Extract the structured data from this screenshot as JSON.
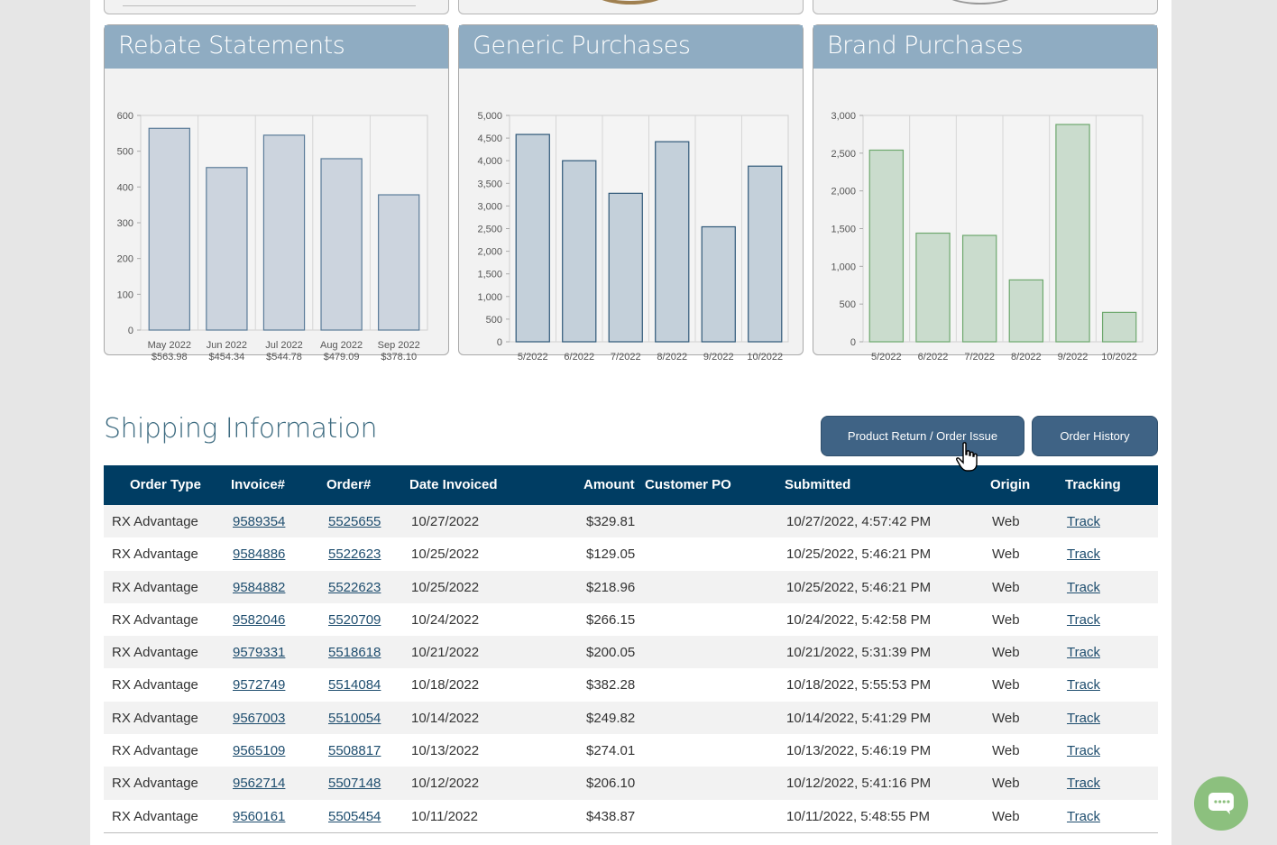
{
  "charts": {
    "rebate": {
      "title": "Rebate Statements",
      "y_ticks": [
        "600",
        "500",
        "400",
        "300",
        "200",
        "100",
        "0"
      ],
      "bars": [
        {
          "label1": "May 2022",
          "label2": "$563.98"
        },
        {
          "label1": "Jun 2022",
          "label2": "$454.34"
        },
        {
          "label1": "Jul 2022",
          "label2": "$544.78"
        },
        {
          "label1": "Aug 2022",
          "label2": "$479.09"
        },
        {
          "label1": "Sep 2022",
          "label2": "$378.10"
        }
      ]
    },
    "generic": {
      "title": "Generic Purchases",
      "y_ticks": [
        "5,000",
        "4,500",
        "4,000",
        "3,500",
        "3,000",
        "2,500",
        "2,000",
        "1,500",
        "1,000",
        "500",
        "0"
      ],
      "x_labels": [
        "5/2022",
        "6/2022",
        "7/2022",
        "8/2022",
        "9/2022",
        "10/2022"
      ]
    },
    "brand": {
      "title": "Brand Purchases",
      "y_ticks": [
        "3,000",
        "2,500",
        "2,000",
        "1,500",
        "1,000",
        "500",
        "0"
      ],
      "x_labels": [
        "5/2022",
        "6/2022",
        "7/2022",
        "8/2022",
        "9/2022",
        "10/2022"
      ]
    }
  },
  "chart_data": [
    {
      "type": "bar",
      "title": "Rebate Statements",
      "categories": [
        "May 2022",
        "Jun 2022",
        "Jul 2022",
        "Aug 2022",
        "Sep 2022"
      ],
      "values": [
        563.98,
        454.34,
        544.78,
        479.09,
        378.1
      ],
      "ylim": [
        0,
        600
      ],
      "color": "#ccd4de",
      "stroke": "#5b7c99"
    },
    {
      "type": "bar",
      "title": "Generic Purchases",
      "categories": [
        "5/2022",
        "6/2022",
        "7/2022",
        "8/2022",
        "9/2022",
        "10/2022"
      ],
      "values": [
        4580,
        4000,
        3280,
        4420,
        2540,
        3880
      ],
      "ylim": [
        0,
        5000
      ],
      "color": "#c4d0da",
      "stroke": "#2f5878"
    },
    {
      "type": "bar",
      "title": "Brand Purchases",
      "categories": [
        "5/2022",
        "6/2022",
        "7/2022",
        "8/2022",
        "9/2022",
        "10/2022"
      ],
      "values": [
        2540,
        1440,
        1410,
        820,
        2880,
        390
      ],
      "ylim": [
        0,
        3000
      ],
      "color": "#cadccd",
      "stroke": "#6ea86e"
    }
  ],
  "shipping": {
    "title": "Shipping Information",
    "return_button": "Product Return / Order Issue",
    "history_button": "Order History",
    "columns": [
      "Order Type",
      "Invoice#",
      "Order#",
      "Date Invoiced",
      "Amount",
      "Customer PO",
      "Submitted",
      "Origin",
      "Tracking"
    ],
    "rows": [
      {
        "type": "RX Advantage",
        "invoice": "9589354",
        "order": "5525655",
        "date": "10/27/2022",
        "amount": "$329.81",
        "po": "",
        "submitted": "10/27/2022, 4:57:42 PM",
        "origin": "Web",
        "tracking": "Track"
      },
      {
        "type": "RX Advantage",
        "invoice": "9584886",
        "order": "5522623",
        "date": "10/25/2022",
        "amount": "$129.05",
        "po": "",
        "submitted": "10/25/2022, 5:46:21 PM",
        "origin": "Web",
        "tracking": "Track"
      },
      {
        "type": "RX Advantage",
        "invoice": "9584882",
        "order": "5522623",
        "date": "10/25/2022",
        "amount": "$218.96",
        "po": "",
        "submitted": "10/25/2022, 5:46:21 PM",
        "origin": "Web",
        "tracking": "Track"
      },
      {
        "type": "RX Advantage",
        "invoice": "9582046",
        "order": "5520709",
        "date": "10/24/2022",
        "amount": "$266.15",
        "po": "",
        "submitted": "10/24/2022, 5:42:58 PM",
        "origin": "Web",
        "tracking": "Track"
      },
      {
        "type": "RX Advantage",
        "invoice": "9579331",
        "order": "5518618",
        "date": "10/21/2022",
        "amount": "$200.05",
        "po": "",
        "submitted": "10/21/2022, 5:31:39 PM",
        "origin": "Web",
        "tracking": "Track"
      },
      {
        "type": "RX Advantage",
        "invoice": "9572749",
        "order": "5514084",
        "date": "10/18/2022",
        "amount": "$382.28",
        "po": "",
        "submitted": "10/18/2022, 5:55:53 PM",
        "origin": "Web",
        "tracking": "Track"
      },
      {
        "type": "RX Advantage",
        "invoice": "9567003",
        "order": "5510054",
        "date": "10/14/2022",
        "amount": "$249.82",
        "po": "",
        "submitted": "10/14/2022, 5:41:29 PM",
        "origin": "Web",
        "tracking": "Track"
      },
      {
        "type": "RX Advantage",
        "invoice": "9565109",
        "order": "5508817",
        "date": "10/13/2022",
        "amount": "$274.01",
        "po": "",
        "submitted": "10/13/2022, 5:46:19 PM",
        "origin": "Web",
        "tracking": "Track"
      },
      {
        "type": "RX Advantage",
        "invoice": "9562714",
        "order": "5507148",
        "date": "10/12/2022",
        "amount": "$206.10",
        "po": "",
        "submitted": "10/12/2022, 5:41:16 PM",
        "origin": "Web",
        "tracking": "Track"
      },
      {
        "type": "RX Advantage",
        "invoice": "9560161",
        "order": "5505454",
        "date": "10/11/2022",
        "amount": "$438.87",
        "po": "",
        "submitted": "10/11/2022, 5:48:55 PM",
        "origin": "Web",
        "tracking": "Track"
      }
    ]
  },
  "icons": {
    "chat": "chat-bubble-icon",
    "cursor": "hand-pointer-icon"
  },
  "colors": {
    "header": "#003d63",
    "card_head": "#8facc2",
    "button": "#3f6385",
    "chat": "#8cc07e"
  }
}
